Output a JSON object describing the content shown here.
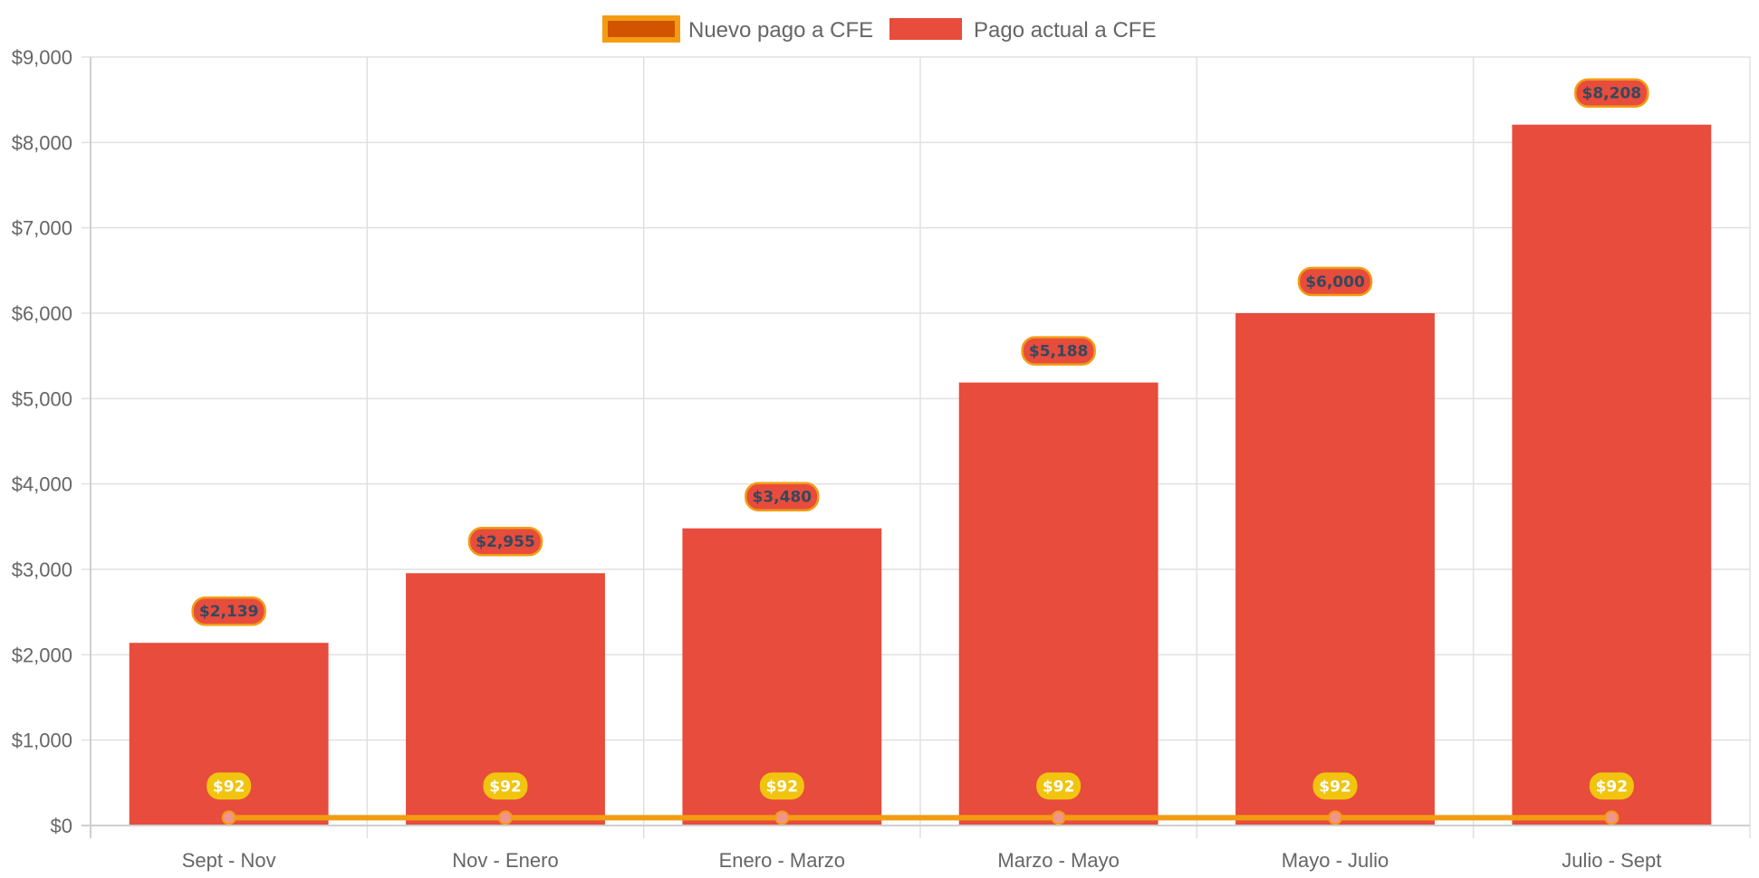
{
  "chart_data": {
    "type": "bar",
    "title": "",
    "xlabel": "",
    "ylabel": "",
    "categories": [
      "Sept - Nov",
      "Nov - Enero",
      "Enero - Marzo",
      "Marzo - Mayo",
      "Mayo - Julio",
      "Julio - Sept"
    ],
    "ylim": [
      0,
      9000
    ],
    "y_ticks": [
      0,
      1000,
      2000,
      3000,
      4000,
      5000,
      6000,
      7000,
      8000,
      9000
    ],
    "y_tick_labels": [
      "$0",
      "$1,000",
      "$2,000",
      "$3,000",
      "$4,000",
      "$5,000",
      "$6,000",
      "$7,000",
      "$8,000",
      "$9,000"
    ],
    "grid": true,
    "legend_position": "top-center",
    "series": [
      {
        "name": "Nuevo pago a CFE",
        "type": "line",
        "color": "#f39c12",
        "point_color": "#f1948a",
        "fill_color": "#d35400",
        "values": [
          92,
          92,
          92,
          92,
          92,
          92
        ],
        "labels": [
          "$92",
          "$92",
          "$92",
          "$92",
          "$92",
          "$92"
        ],
        "label_bg": "#f1c40f",
        "label_text_color": "#ffffff"
      },
      {
        "name": "Pago actual a CFE",
        "type": "bar",
        "color": "#e74c3c",
        "values": [
          2139,
          2955,
          3480,
          5188,
          6000,
          8208
        ],
        "labels": [
          "$2,139",
          "$2,955",
          "$3,480",
          "$5,188",
          "$6,000",
          "$8,208"
        ],
        "label_bg": "#e74c3c",
        "label_border": "#f39c12",
        "label_text_color": "#34495e"
      }
    ]
  }
}
